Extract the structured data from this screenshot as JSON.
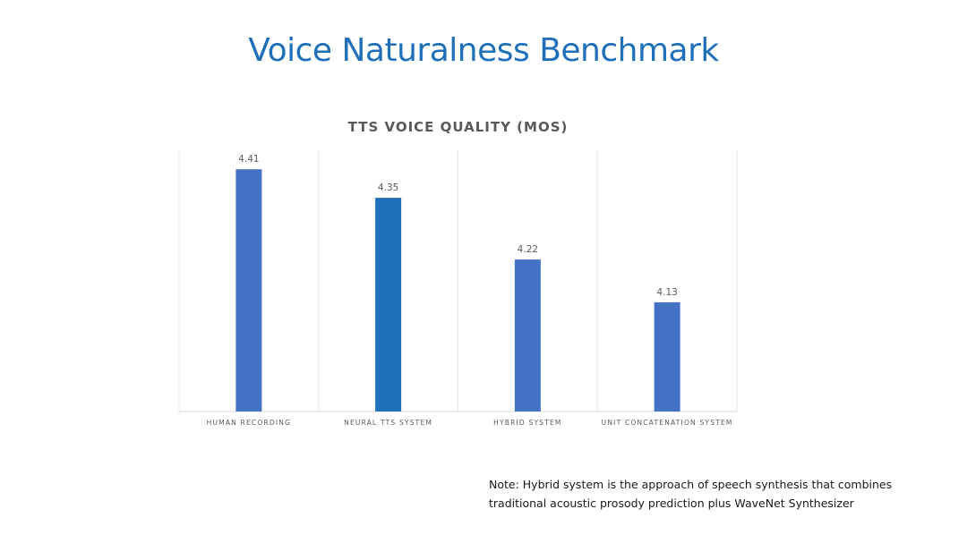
{
  "slide": {
    "title": "Voice Naturalness Benchmark",
    "title_color": "#1f6fb9"
  },
  "note": {
    "line1": "Note: Hybrid system is the approach of speech synthesis that combines",
    "line2": "traditional acoustic prosody prediction plus WaveNet Synthesizer"
  },
  "chart_data": {
    "type": "bar",
    "title": "TTS VOICE QUALITY (MOS)",
    "categories": [
      "HUMAN RECORDING",
      "NEURAL TTS SYSTEM",
      "HYBRID SYSTEM",
      "UNIT CONCATENATION SYSTEM"
    ],
    "values": [
      4.41,
      4.35,
      4.22,
      4.13
    ],
    "labels": [
      "4.41",
      "4.35",
      "4.22",
      "4.13"
    ],
    "xlabel": "",
    "ylabel": "",
    "ylim": [
      3.9,
      4.45
    ],
    "grid": false,
    "legend": "none",
    "bar_color": "#4472c4",
    "highlight_color": "#1f6fb9",
    "highlight_index": 1
  }
}
